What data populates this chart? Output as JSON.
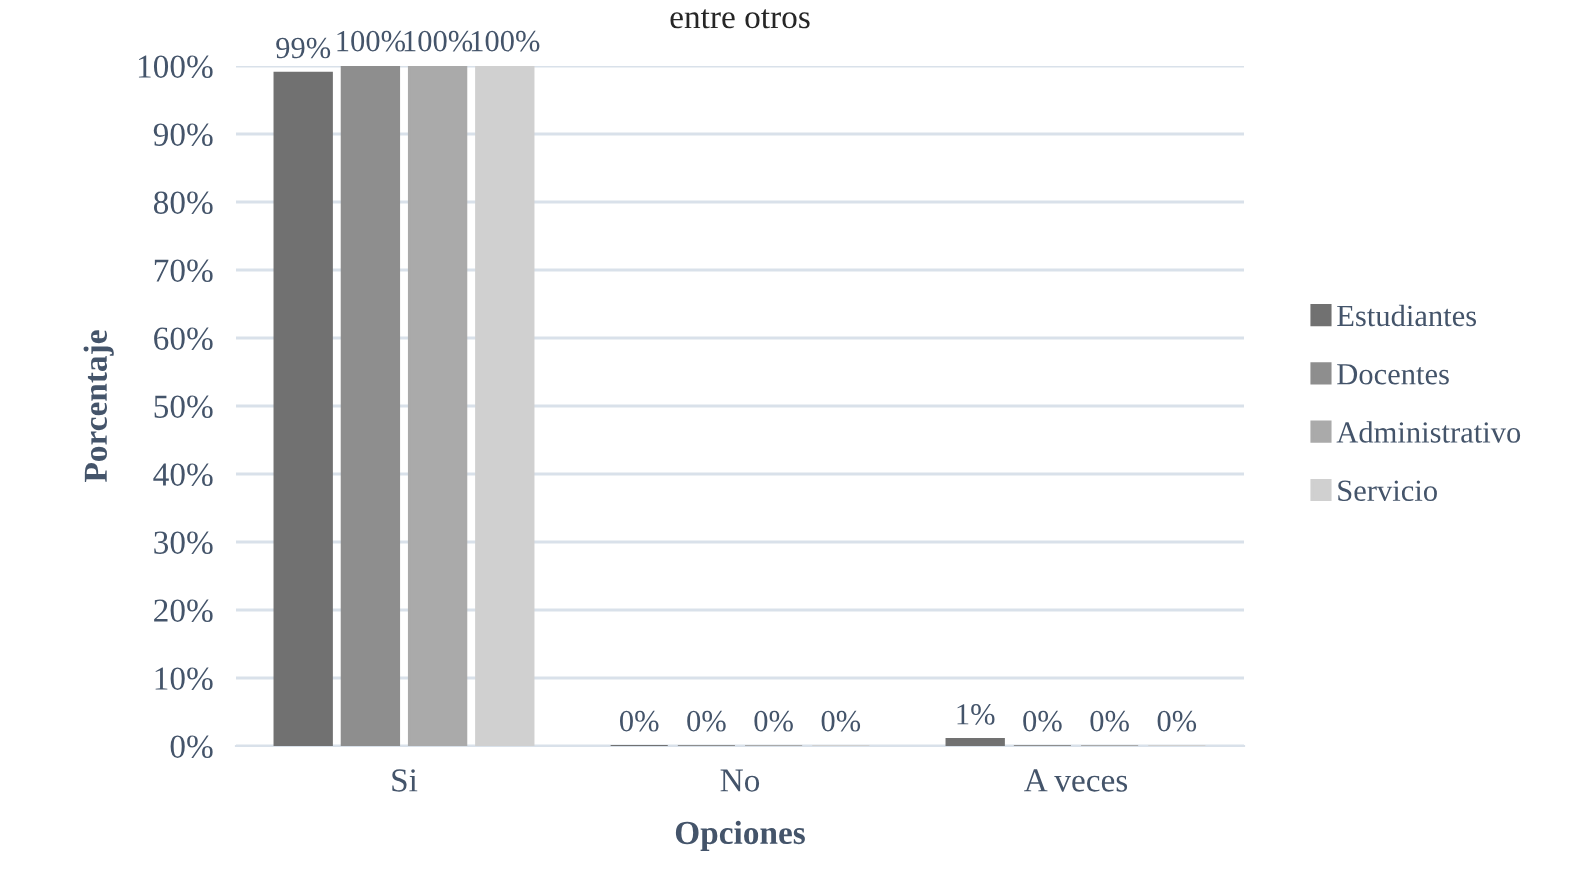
{
  "chart_data": {
    "type": "bar",
    "title": "entre otros",
    "xlabel": "Opciones",
    "ylabel": "Porcentaje",
    "categories": [
      "Si",
      "No",
      "A veces"
    ],
    "series": [
      {
        "name": "Estudiantes",
        "color": "#717171",
        "values": [
          99,
          0,
          1
        ],
        "value_labels": [
          "99%",
          "0%",
          "1%"
        ]
      },
      {
        "name": "Docentes",
        "color": "#8e8e8e",
        "values": [
          100,
          0,
          0
        ],
        "value_labels": [
          "100%",
          "0%",
          "0%"
        ]
      },
      {
        "name": "Administrativo",
        "color": "#aaaaaa",
        "values": [
          100,
          0,
          0
        ],
        "value_labels": [
          "100%",
          "0%",
          "0%"
        ]
      },
      {
        "name": "Servicio",
        "color": "#d0d0d0",
        "values": [
          100,
          0,
          0
        ],
        "value_labels": [
          "100%",
          "0%",
          "0%"
        ]
      }
    ],
    "ylim": [
      0,
      100
    ],
    "yticks": [
      {
        "value": 0,
        "label": "0%"
      },
      {
        "value": 10,
        "label": "10%"
      },
      {
        "value": 20,
        "label": "20%"
      },
      {
        "value": 30,
        "label": "30%"
      },
      {
        "value": 40,
        "label": "40%"
      },
      {
        "value": 50,
        "label": "50%"
      },
      {
        "value": 60,
        "label": "60%"
      },
      {
        "value": 70,
        "label": "70%"
      },
      {
        "value": 80,
        "label": "80%"
      },
      {
        "value": 90,
        "label": "90%"
      },
      {
        "value": 100,
        "label": "100%"
      }
    ],
    "grid": "y",
    "legend": "right"
  }
}
